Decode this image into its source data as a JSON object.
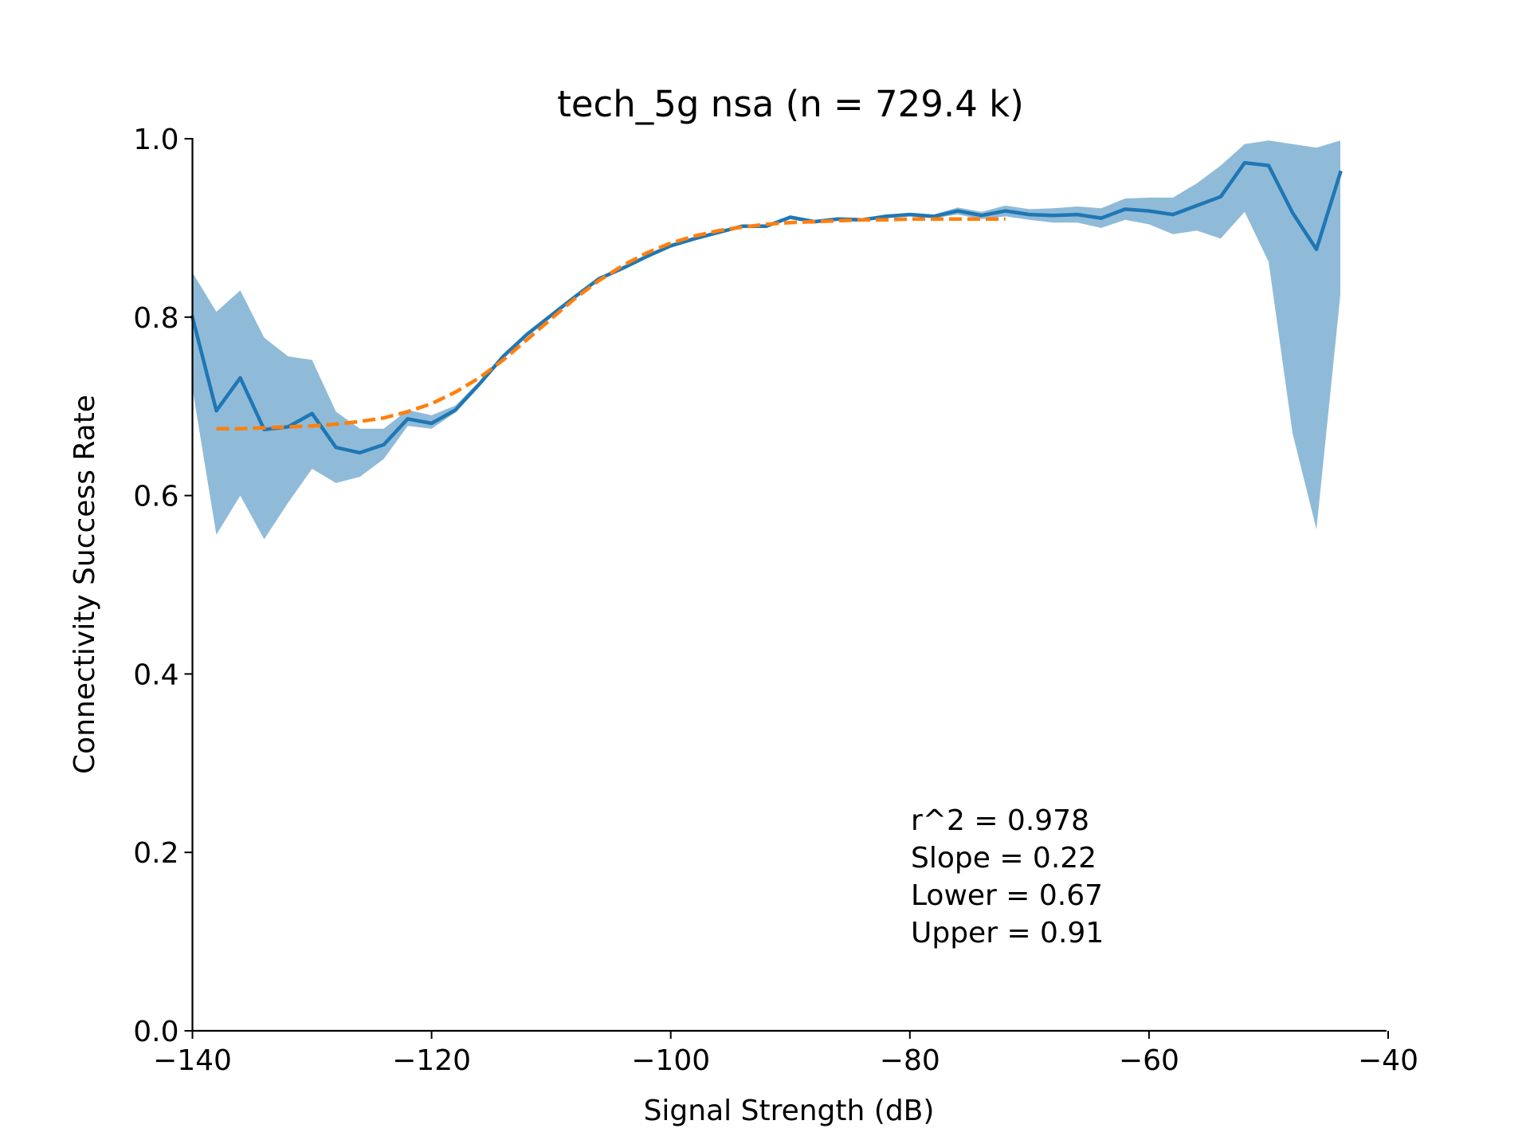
{
  "chart_data": {
    "type": "line",
    "title": "tech_5g nsa (n = 729.4 k)",
    "xlabel": "Signal Strength (dB)",
    "ylabel": "Connectivity Success Rate",
    "xlim": [
      -140,
      -40
    ],
    "ylim": [
      0.0,
      1.0
    ],
    "xticks": [
      -140,
      -120,
      -100,
      -80,
      -60,
      -40
    ],
    "xtick_labels": [
      "−140",
      "−120",
      "−100",
      "−80",
      "−60",
      "−40"
    ],
    "yticks": [
      0.0,
      0.2,
      0.4,
      0.6,
      0.8,
      1.0
    ],
    "ytick_labels": [
      "0.0",
      "0.2",
      "0.4",
      "0.6",
      "0.8",
      "1.0"
    ],
    "grid": false,
    "colors": {
      "observed": "#1f77b4",
      "band": "#1f77b4",
      "fit": "#ff7f0e"
    },
    "series": [
      {
        "role": "observed",
        "x": [
          -140,
          -138,
          -136,
          -134,
          -132,
          -130,
          -128,
          -126,
          -124,
          -122,
          -120,
          -118,
          -116,
          -114,
          -112,
          -110,
          -108,
          -106,
          -104,
          -102,
          -100,
          -98,
          -96,
          -94,
          -92,
          -90,
          -88,
          -86,
          -84,
          -82,
          -80,
          -78,
          -76,
          -74,
          -72,
          -70,
          -68,
          -66,
          -64,
          -62,
          -60,
          -58,
          -56,
          -54,
          -52,
          -50,
          -48,
          -46,
          -44
        ],
        "y": [
          0.8,
          0.695,
          0.732,
          0.674,
          0.677,
          0.692,
          0.654,
          0.648,
          0.657,
          0.686,
          0.681,
          0.696,
          0.725,
          0.756,
          0.781,
          0.802,
          0.823,
          0.843,
          0.855,
          0.868,
          0.88,
          0.888,
          0.895,
          0.902,
          0.902,
          0.912,
          0.907,
          0.91,
          0.909,
          0.913,
          0.915,
          0.913,
          0.919,
          0.914,
          0.919,
          0.915,
          0.914,
          0.915,
          0.911,
          0.921,
          0.919,
          0.915,
          0.925,
          0.935,
          0.973,
          0.97,
          0.917,
          0.876,
          0.962
        ],
        "lower": [
          0.72,
          0.556,
          0.6,
          0.551,
          0.592,
          0.63,
          0.614,
          0.621,
          0.641,
          0.678,
          0.675,
          0.693,
          0.723,
          0.754,
          0.779,
          0.8,
          0.821,
          0.841,
          0.853,
          0.866,
          0.878,
          0.886,
          0.893,
          0.9,
          0.9,
          0.91,
          0.905,
          0.908,
          0.907,
          0.911,
          0.913,
          0.911,
          0.915,
          0.91,
          0.913,
          0.909,
          0.906,
          0.906,
          0.9,
          0.909,
          0.904,
          0.893,
          0.897,
          0.888,
          0.918,
          0.862,
          0.67,
          0.562,
          0.825
        ],
        "upper": [
          0.85,
          0.806,
          0.83,
          0.777,
          0.756,
          0.752,
          0.694,
          0.675,
          0.675,
          0.696,
          0.69,
          0.701,
          0.728,
          0.759,
          0.783,
          0.804,
          0.825,
          0.845,
          0.857,
          0.87,
          0.882,
          0.89,
          0.897,
          0.904,
          0.904,
          0.914,
          0.909,
          0.912,
          0.911,
          0.915,
          0.917,
          0.915,
          0.923,
          0.918,
          0.925,
          0.921,
          0.922,
          0.924,
          0.922,
          0.933,
          0.934,
          0.934,
          0.95,
          0.97,
          0.994,
          0.998,
          0.994,
          0.99,
          0.998
        ]
      },
      {
        "role": "fit",
        "style": "dashed",
        "x": [
          -138,
          -136,
          -134,
          -132,
          -130,
          -128,
          -126,
          -124,
          -122,
          -120,
          -118,
          -116,
          -114,
          -112,
          -110,
          -108,
          -106,
          -104,
          -102,
          -100,
          -98,
          -96,
          -94,
          -92,
          -90,
          -88,
          -86,
          -84,
          -82,
          -80,
          -78,
          -76,
          -74,
          -72
        ],
        "y": [
          0.675,
          0.675,
          0.676,
          0.677,
          0.678,
          0.68,
          0.683,
          0.687,
          0.694,
          0.703,
          0.716,
          0.732,
          0.752,
          0.775,
          0.798,
          0.821,
          0.841,
          0.858,
          0.872,
          0.883,
          0.891,
          0.897,
          0.901,
          0.904,
          0.906,
          0.907,
          0.908,
          0.909,
          0.909,
          0.91,
          0.91,
          0.91,
          0.91,
          0.91
        ]
      }
    ],
    "annotation": {
      "position": "lower-right",
      "lines": [
        "r^2 = 0.978",
        "Slope = 0.22",
        "Lower = 0.67",
        "Upper = 0.91"
      ]
    }
  }
}
